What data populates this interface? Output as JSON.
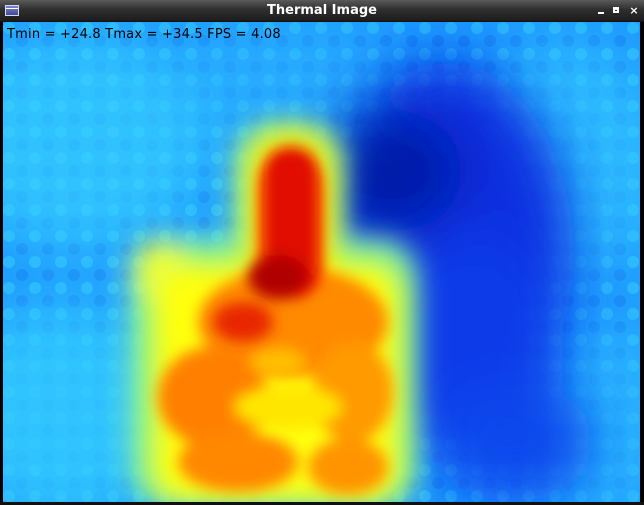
{
  "window": {
    "title": "Thermal Image",
    "buttons": {
      "minimize_icon": "minimize-icon",
      "maximize_icon": "maximize-icon",
      "close_glyph": "×"
    }
  },
  "overlay": {
    "tmin_label": "Tmin",
    "tmin_value": "+24.8",
    "tmax_label": "Tmax",
    "tmax_value": "+34.5",
    "fps_label": "FPS",
    "fps_value": "4.08",
    "text": "Tmin = +24.8 Tmax = +34.5 FPS = 4.08"
  },
  "colormap": {
    "name": "jet",
    "cold": "#0018d8",
    "cool": "#1e9bff",
    "cyan": "#3ee6ff",
    "warm": "#ffff00",
    "hot": "#ff8a00",
    "hottest": "#c40000"
  }
}
